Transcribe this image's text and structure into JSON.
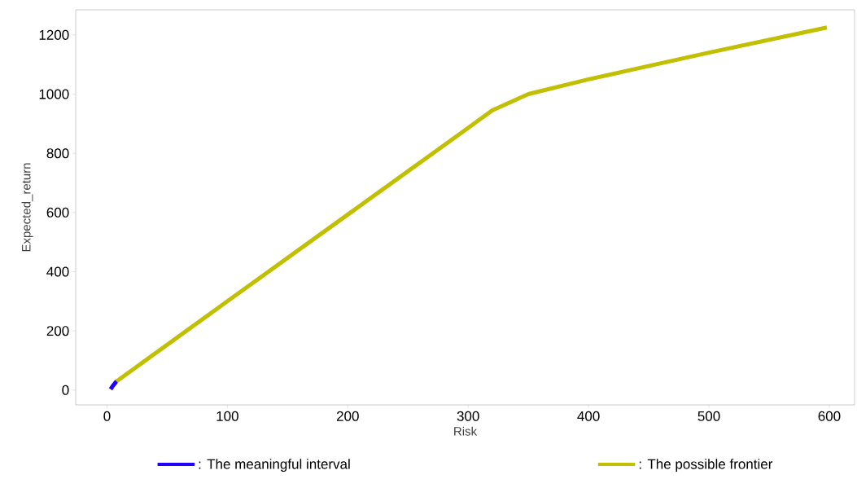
{
  "chart_data": {
    "type": "line",
    "xlabel": "Risk",
    "ylabel": "Expected_return",
    "xlim": [
      -26,
      621
    ],
    "ylim": [
      -50,
      1285
    ],
    "xticks": [
      0,
      100,
      200,
      300,
      400,
      500,
      600
    ],
    "yticks": [
      0,
      200,
      400,
      600,
      800,
      1000,
      1200
    ],
    "legend": "bottom",
    "series": [
      {
        "name": ": The meaningful interval",
        "color": "#2200ff",
        "x": [
          3,
          5,
          8
        ],
        "values": [
          3,
          15,
          30
        ]
      },
      {
        "name": ": The possible frontier",
        "color": "#c0c000",
        "x": [
          8,
          100,
          200,
          300,
          320,
          350,
          400,
          500,
          598
        ],
        "values": [
          30,
          300,
          593,
          886,
          945,
          1000,
          1050,
          1140,
          1225
        ]
      }
    ]
  }
}
